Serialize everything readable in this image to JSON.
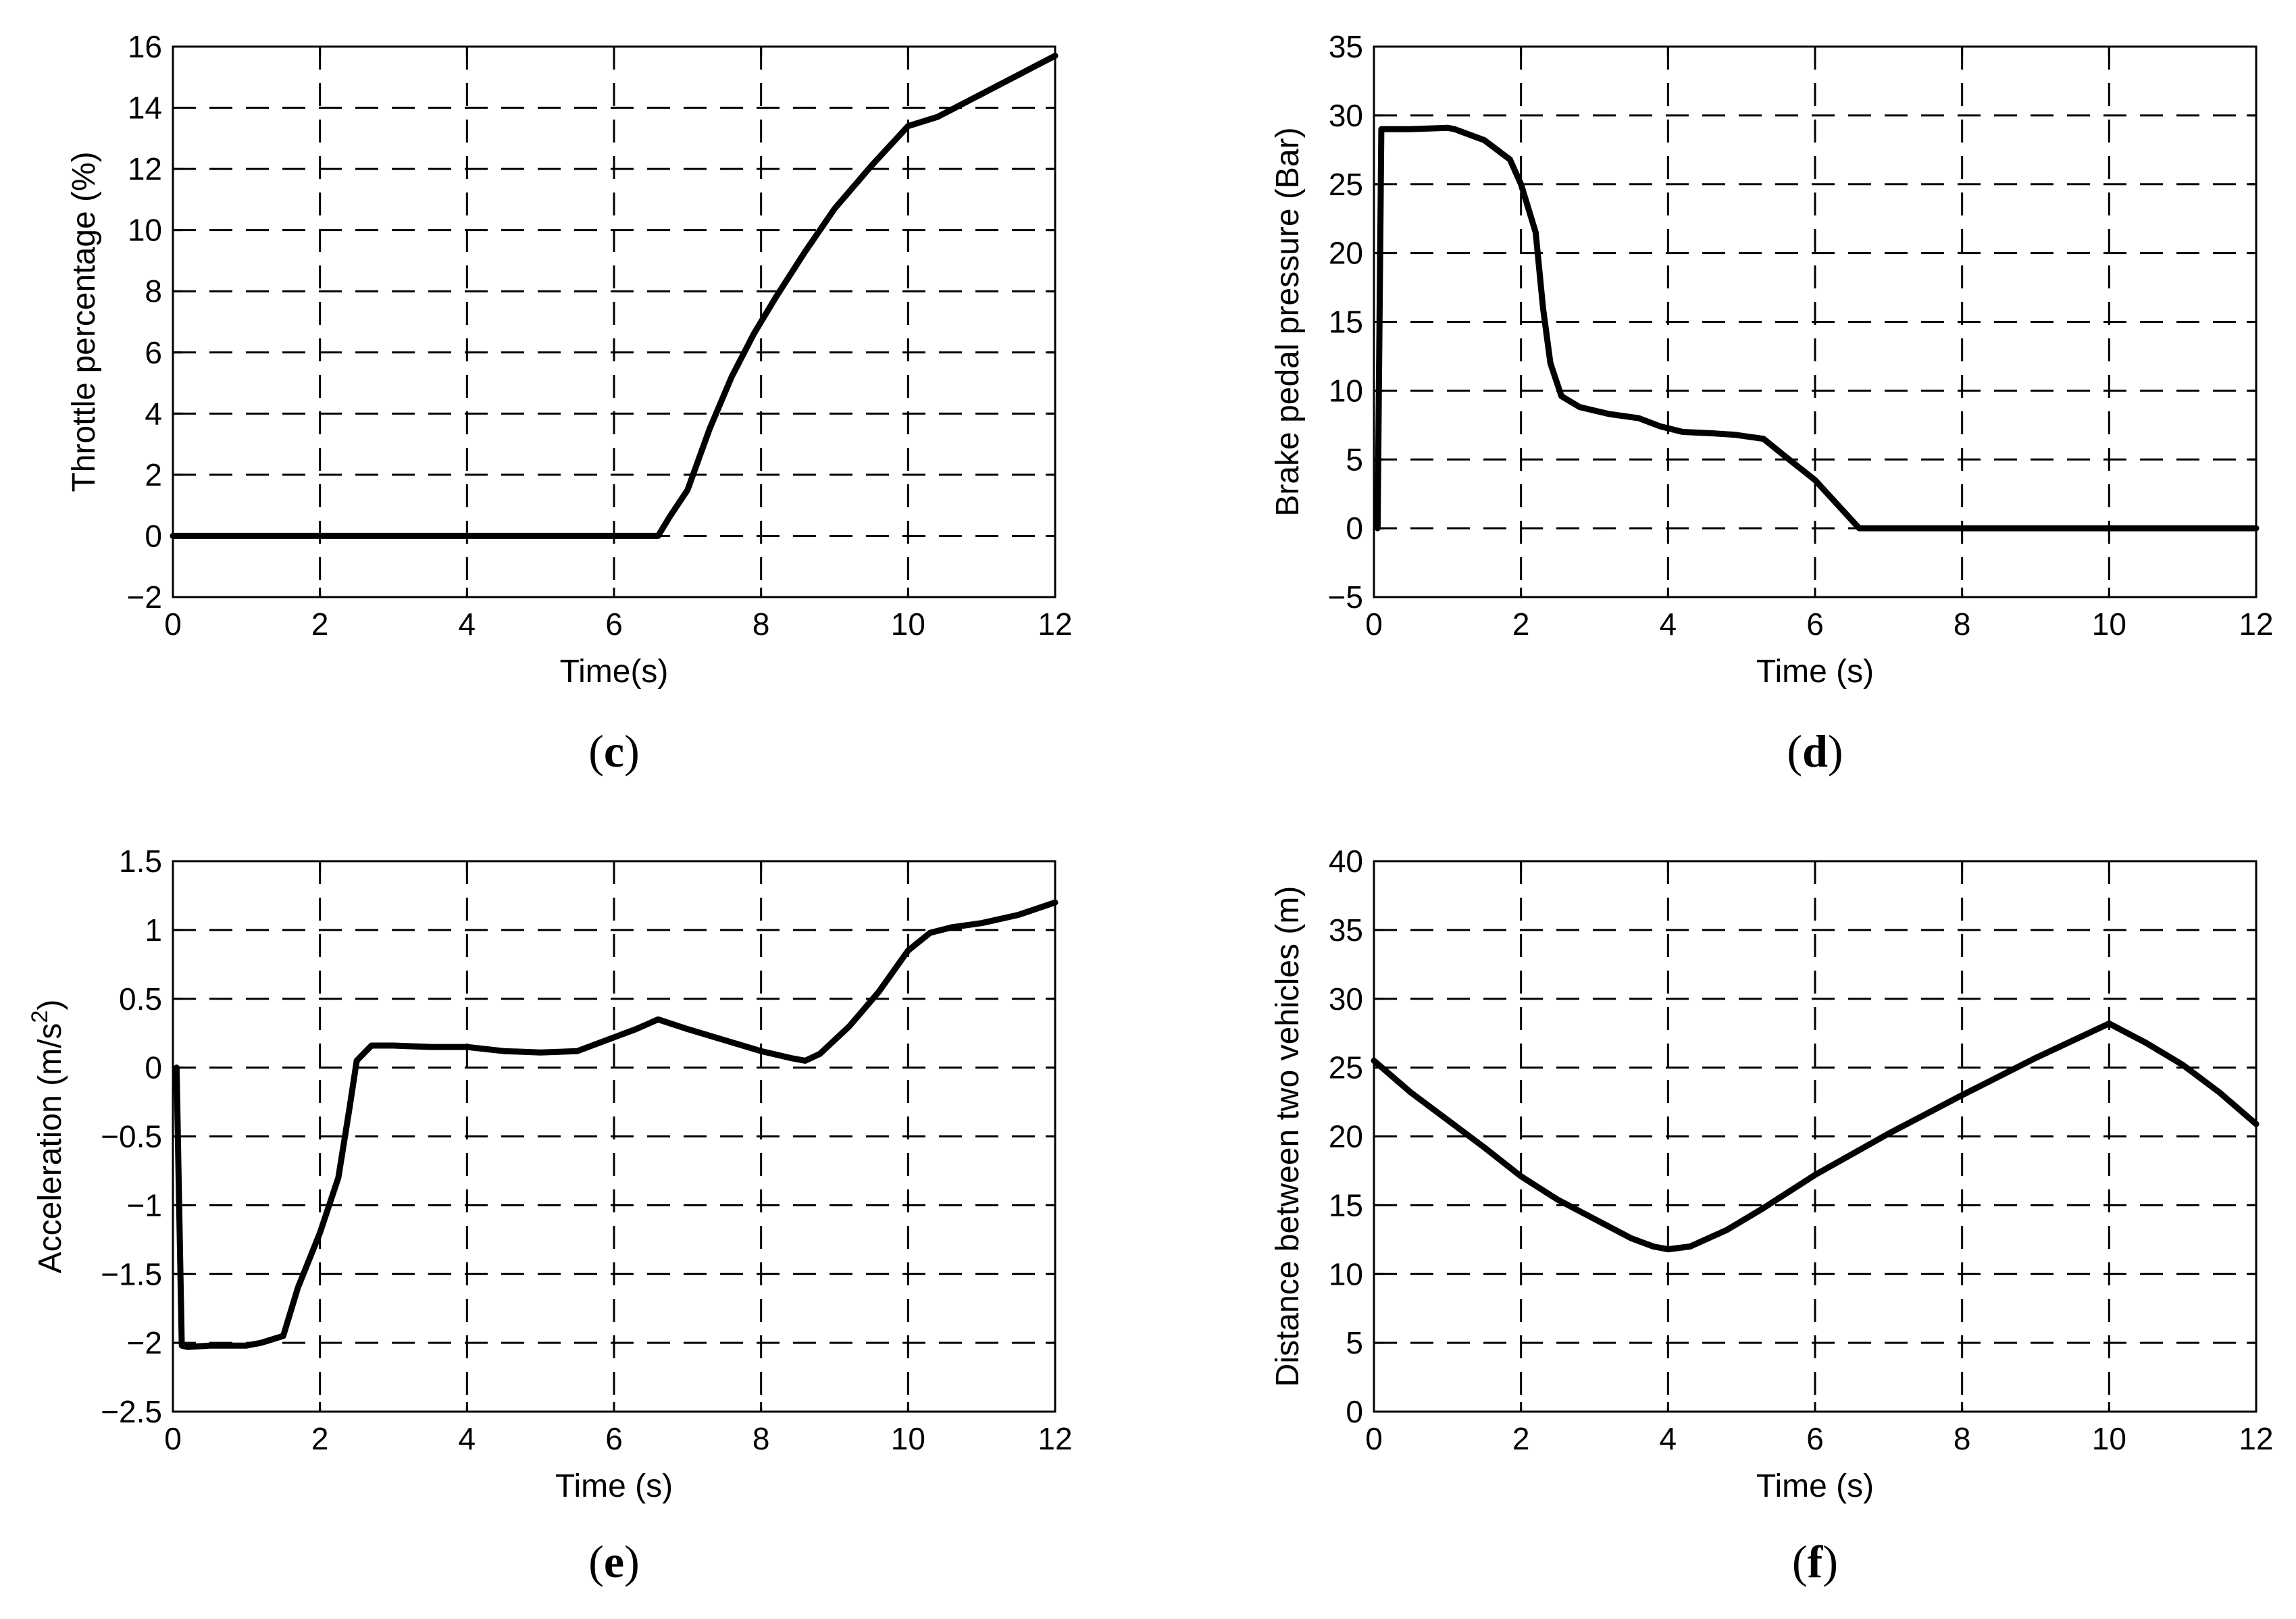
{
  "chart_data": [
    {
      "panel": "(c)",
      "panel_letter": "c",
      "type": "line",
      "xlabel": "Time(s)",
      "ylabel": "Throttle percentage (%)",
      "xlim": [
        0,
        12
      ],
      "ylim": [
        -2,
        16
      ],
      "xticks": [
        0,
        2,
        4,
        6,
        8,
        10,
        12
      ],
      "yticks": [
        -2,
        0,
        2,
        4,
        6,
        8,
        10,
        12,
        14,
        16
      ],
      "ytick_labels": [
        "−2",
        "0",
        "2",
        "4",
        "6",
        "8",
        "10",
        "12",
        "14",
        "16"
      ],
      "grid": "dashed",
      "series": [
        {
          "x": [
            0,
            6.6,
            6.75,
            7.0,
            7.3,
            7.6,
            7.9,
            8.2,
            8.6,
            9.0,
            9.5,
            10.0,
            10.4,
            10.8,
            11.2,
            11.6,
            12.0
          ],
          "y": [
            0,
            0,
            0.6,
            1.5,
            3.5,
            5.2,
            6.6,
            7.8,
            9.3,
            10.7,
            12.1,
            13.4,
            13.7,
            14.2,
            14.7,
            15.2,
            15.7
          ]
        }
      ]
    },
    {
      "panel": "(d)",
      "panel_letter": "d",
      "type": "line",
      "xlabel": "Time (s)",
      "ylabel": "Brake pedal pressure (Bar)",
      "xlim": [
        0,
        12
      ],
      "ylim": [
        -5,
        35
      ],
      "xticks": [
        0,
        2,
        4,
        6,
        8,
        10,
        12
      ],
      "yticks": [
        -5,
        0,
        5,
        10,
        15,
        20,
        25,
        30,
        35
      ],
      "ytick_labels": [
        "−5",
        "0",
        "5",
        "10",
        "15",
        "20",
        "25",
        "30",
        "35"
      ],
      "grid": "dashed",
      "series": [
        {
          "x": [
            0.05,
            0.1,
            0.15,
            0.5,
            1.0,
            1.1,
            1.5,
            1.85,
            2.0,
            2.2,
            2.3,
            2.4,
            2.55,
            2.8,
            3.2,
            3.6,
            3.9,
            4.2,
            4.6,
            4.9,
            5.3,
            5.6,
            6.0,
            6.6,
            8.0,
            10.0,
            12.0
          ],
          "y": [
            0,
            29.0,
            29.0,
            29.0,
            29.1,
            29.0,
            28.2,
            26.8,
            25.0,
            21.5,
            16.0,
            12.0,
            9.6,
            8.8,
            8.3,
            8.0,
            7.4,
            7.0,
            6.9,
            6.8,
            6.5,
            5.2,
            3.5,
            0,
            0,
            0,
            0
          ]
        }
      ]
    },
    {
      "panel": "(e)",
      "panel_letter": "e",
      "type": "line",
      "xlabel": "Time (s)",
      "ylabel_main": "Acceleration (m/s",
      "ylabel_sup": "2",
      "ylabel_close": ")",
      "xlim": [
        0,
        12
      ],
      "ylim": [
        -2.5,
        1.5
      ],
      "xticks": [
        0,
        2,
        4,
        6,
        8,
        10,
        12
      ],
      "yticks": [
        -2.5,
        -2,
        -1.5,
        -1,
        -0.5,
        0,
        0.5,
        1,
        1.5
      ],
      "ytick_labels": [
        "−2.5",
        "−2",
        "−1.5",
        "−1",
        "−0.5",
        "0",
        "0.5",
        "1",
        "1.5"
      ],
      "grid": "dashed",
      "series": [
        {
          "x": [
            0.05,
            0.12,
            0.2,
            0.5,
            1.0,
            1.2,
            1.5,
            1.7,
            2.0,
            2.25,
            2.4,
            2.5,
            2.7,
            3.0,
            3.5,
            4.0,
            4.5,
            5.0,
            5.5,
            6.0,
            6.3,
            6.6,
            7.0,
            7.5,
            8.0,
            8.4,
            8.6,
            8.8,
            9.2,
            9.6,
            10.0,
            10.3,
            10.6,
            11.0,
            11.5,
            12.0
          ],
          "y": [
            0.0,
            -2.02,
            -2.03,
            -2.02,
            -2.02,
            -2.0,
            -1.95,
            -1.6,
            -1.2,
            -0.8,
            -0.3,
            0.05,
            0.16,
            0.16,
            0.15,
            0.15,
            0.12,
            0.11,
            0.12,
            0.22,
            0.28,
            0.35,
            0.28,
            0.2,
            0.12,
            0.07,
            0.05,
            0.1,
            0.3,
            0.55,
            0.85,
            0.98,
            1.02,
            1.05,
            1.11,
            1.2
          ]
        }
      ]
    },
    {
      "panel": "(f)",
      "panel_letter": "f",
      "type": "line",
      "xlabel": "Time (s)",
      "ylabel": "Distance between two vehicles (m)",
      "xlim": [
        0,
        12
      ],
      "ylim": [
        0,
        40
      ],
      "xticks": [
        0,
        2,
        4,
        6,
        8,
        10,
        12
      ],
      "yticks": [
        0,
        5,
        10,
        15,
        20,
        25,
        30,
        35,
        40
      ],
      "ytick_labels": [
        "0",
        "5",
        "10",
        "15",
        "20",
        "25",
        "30",
        "35",
        "40"
      ],
      "grid": "dashed",
      "series": [
        {
          "x": [
            0,
            0.5,
            1.0,
            1.5,
            2.0,
            2.5,
            3.0,
            3.5,
            3.8,
            4.0,
            4.3,
            4.8,
            5.3,
            6.0,
            7.0,
            8.0,
            9.0,
            10.0,
            10.5,
            11.0,
            11.5,
            12.0
          ],
          "y": [
            25.5,
            23.2,
            21.2,
            19.2,
            17.1,
            15.4,
            14.0,
            12.6,
            12.0,
            11.8,
            12.0,
            13.2,
            14.8,
            17.2,
            20.2,
            23.0,
            25.7,
            28.2,
            26.8,
            25.2,
            23.2,
            20.9
          ]
        }
      ]
    }
  ]
}
